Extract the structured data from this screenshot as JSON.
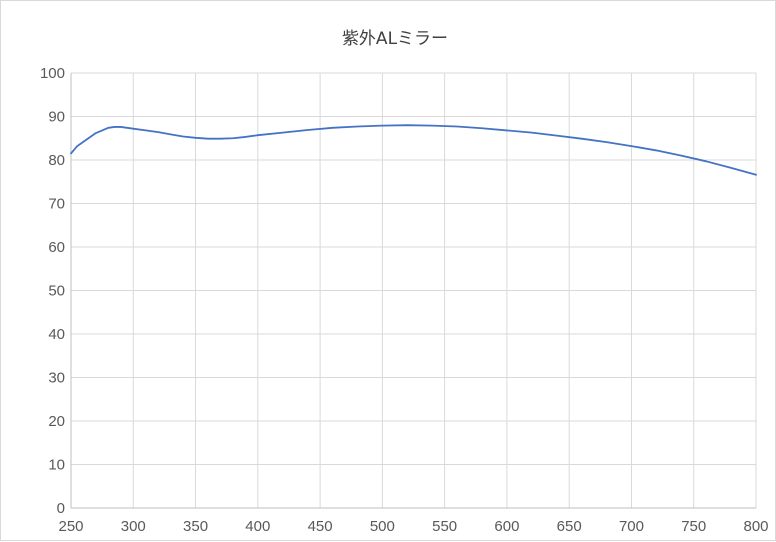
{
  "chart_data": {
    "type": "line",
    "title": "紫外ALミラー",
    "xlabel": "",
    "ylabel": "",
    "xlim": [
      250,
      800
    ],
    "ylim": [
      0,
      100
    ],
    "x_ticks": [
      250,
      300,
      350,
      400,
      450,
      500,
      550,
      600,
      650,
      700,
      750,
      800
    ],
    "y_ticks": [
      0,
      10,
      20,
      30,
      40,
      50,
      60,
      70,
      80,
      90,
      100
    ],
    "grid": true,
    "legend": "none",
    "series": [
      {
        "color": "#4472c4",
        "points": [
          [
            250,
            81.5
          ],
          [
            255,
            83.2
          ],
          [
            260,
            84.2
          ],
          [
            265,
            85.2
          ],
          [
            270,
            86.2
          ],
          [
            275,
            86.8
          ],
          [
            280,
            87.4
          ],
          [
            285,
            87.6
          ],
          [
            290,
            87.6
          ],
          [
            295,
            87.4
          ],
          [
            300,
            87.2
          ],
          [
            310,
            86.8
          ],
          [
            320,
            86.4
          ],
          [
            330,
            85.9
          ],
          [
            340,
            85.4
          ],
          [
            350,
            85.1
          ],
          [
            360,
            84.9
          ],
          [
            370,
            84.9
          ],
          [
            380,
            85.0
          ],
          [
            390,
            85.3
          ],
          [
            400,
            85.7
          ],
          [
            420,
            86.3
          ],
          [
            440,
            86.9
          ],
          [
            460,
            87.4
          ],
          [
            480,
            87.7
          ],
          [
            500,
            87.9
          ],
          [
            520,
            88.0
          ],
          [
            540,
            87.9
          ],
          [
            560,
            87.7
          ],
          [
            580,
            87.3
          ],
          [
            600,
            86.8
          ],
          [
            620,
            86.3
          ],
          [
            640,
            85.6
          ],
          [
            660,
            84.9
          ],
          [
            680,
            84.1
          ],
          [
            700,
            83.2
          ],
          [
            720,
            82.2
          ],
          [
            740,
            81.0
          ],
          [
            760,
            79.7
          ],
          [
            780,
            78.2
          ],
          [
            800,
            76.6
          ]
        ]
      }
    ]
  }
}
